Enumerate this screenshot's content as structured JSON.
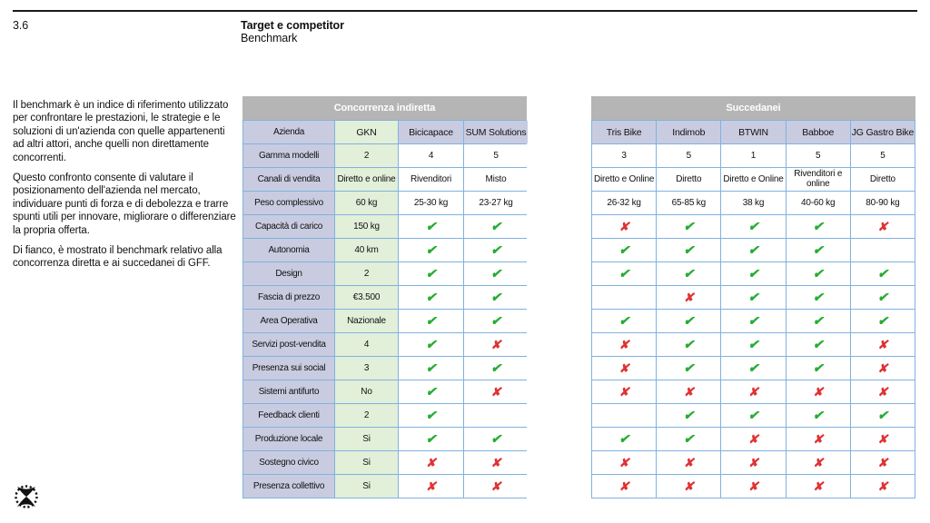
{
  "page": {
    "section_number": "3.6",
    "title": "Target e competitor",
    "subtitle": "Benchmark"
  },
  "intro": [
    "Il benchmark è un indice di riferimento utilizzato per confrontare le prestazioni, le strategie e le soluzioni di un'azienda con quelle appartenenti ad altri attori, anche quelli non direttamente concorrenti.",
    "Questo confronto consente di valutare il posizionamento dell'azienda nel mercato, individuare punti di forza e di debolezza e trarre spunti utili per innovare, migliorare o differenziare la propria offerta.",
    "Di fianco, è mostrato il benchmark relativo alla concorrenza diretta e ai succedanei di GFF."
  ],
  "symbols": {
    "check": "✔",
    "cross": "✘"
  },
  "colors": {
    "band_bg": "#b5b5b5",
    "band_text": "#ffffff",
    "label_bg": "#c9cce0",
    "highlight_bg": "#e2efd9",
    "border": "#7fb2e0",
    "check": "#27ad33",
    "cross": "#e03233"
  },
  "tables": [
    {
      "id": "indiretta",
      "title": "Concorrenza indiretta",
      "label_header": "Azienda",
      "columns": [
        "GKN",
        "Bicicapace",
        "SUM Solutions"
      ],
      "highlight_column_index": 0,
      "rows": [
        {
          "label": "Gamma modelli",
          "cells": [
            "2",
            "4",
            "5"
          ]
        },
        {
          "label": "Canali di vendita",
          "cells": [
            "Diretto e online",
            "Rivenditori",
            "Misto"
          ]
        },
        {
          "label": "Peso complessivo",
          "cells": [
            "60 kg",
            "25-30 kg",
            "23-27 kg"
          ]
        },
        {
          "label": "Capacità di carico",
          "cells": [
            "150 kg",
            "check",
            "check"
          ]
        },
        {
          "label": "Autonomia",
          "cells": [
            "40 km",
            "check",
            "check"
          ]
        },
        {
          "label": "Design",
          "cells": [
            "2",
            "check",
            "check"
          ]
        },
        {
          "label": "Fascia di prezzo",
          "cells": [
            "€3.500",
            "check",
            "check"
          ]
        },
        {
          "label": "Area Operativa",
          "cells": [
            "Nazionale",
            "check",
            "check"
          ]
        },
        {
          "label": "Servizi post-vendita",
          "cells": [
            "4",
            "check",
            "cross"
          ]
        },
        {
          "label": "Presenza sui social",
          "cells": [
            "3",
            "check",
            "check"
          ]
        },
        {
          "label": "Sistemi antifurto",
          "cells": [
            "No",
            "check",
            "cross"
          ]
        },
        {
          "label": "Feedback clienti",
          "cells": [
            "2",
            "check",
            ""
          ]
        },
        {
          "label": "Produzione locale",
          "cells": [
            "Si",
            "check",
            "check"
          ]
        },
        {
          "label": "Sostegno civico",
          "cells": [
            "Si",
            "cross",
            "cross"
          ]
        },
        {
          "label": "Presenza collettivo",
          "cells": [
            "Si",
            "cross",
            "cross"
          ]
        }
      ]
    },
    {
      "id": "succedanei",
      "title": "Succedanei",
      "label_header": null,
      "columns": [
        "Tris Bike",
        "Indimob",
        "BTWIN",
        "Babboe",
        "JG Gastro Bike"
      ],
      "highlight_column_index": -1,
      "rows": [
        {
          "cells": [
            "3",
            "5",
            "1",
            "5",
            "5"
          ]
        },
        {
          "cells": [
            "Diretto e Online",
            "Diretto",
            "Diretto e Online",
            "Rivenditori e online",
            "Diretto"
          ]
        },
        {
          "cells": [
            "26-32 kg",
            "65-85 kg",
            "38 kg",
            "40-60 kg",
            "80-90 kg"
          ]
        },
        {
          "cells": [
            "cross",
            "check",
            "check",
            "check",
            "cross"
          ]
        },
        {
          "cells": [
            "check",
            "check",
            "check",
            "check",
            ""
          ]
        },
        {
          "cells": [
            "check",
            "check",
            "check",
            "check",
            "check"
          ]
        },
        {
          "cells": [
            "",
            "cross",
            "check",
            "check",
            "check"
          ]
        },
        {
          "cells": [
            "check",
            "check",
            "check",
            "check",
            "check"
          ]
        },
        {
          "cells": [
            "cross",
            "check",
            "check",
            "check",
            "cross"
          ]
        },
        {
          "cells": [
            "cross",
            "check",
            "check",
            "check",
            "cross"
          ]
        },
        {
          "cells": [
            "cross",
            "cross",
            "cross",
            "cross",
            "cross"
          ]
        },
        {
          "cells": [
            "",
            "check",
            "check",
            "check",
            "check"
          ]
        },
        {
          "cells": [
            "check",
            "check",
            "cross",
            "cross",
            "cross"
          ]
        },
        {
          "cells": [
            "cross",
            "cross",
            "cross",
            "cross",
            "cross"
          ]
        },
        {
          "cells": [
            "cross",
            "cross",
            "cross",
            "cross",
            "cross"
          ]
        }
      ]
    }
  ],
  "logo": {
    "name": "GFF logo"
  }
}
